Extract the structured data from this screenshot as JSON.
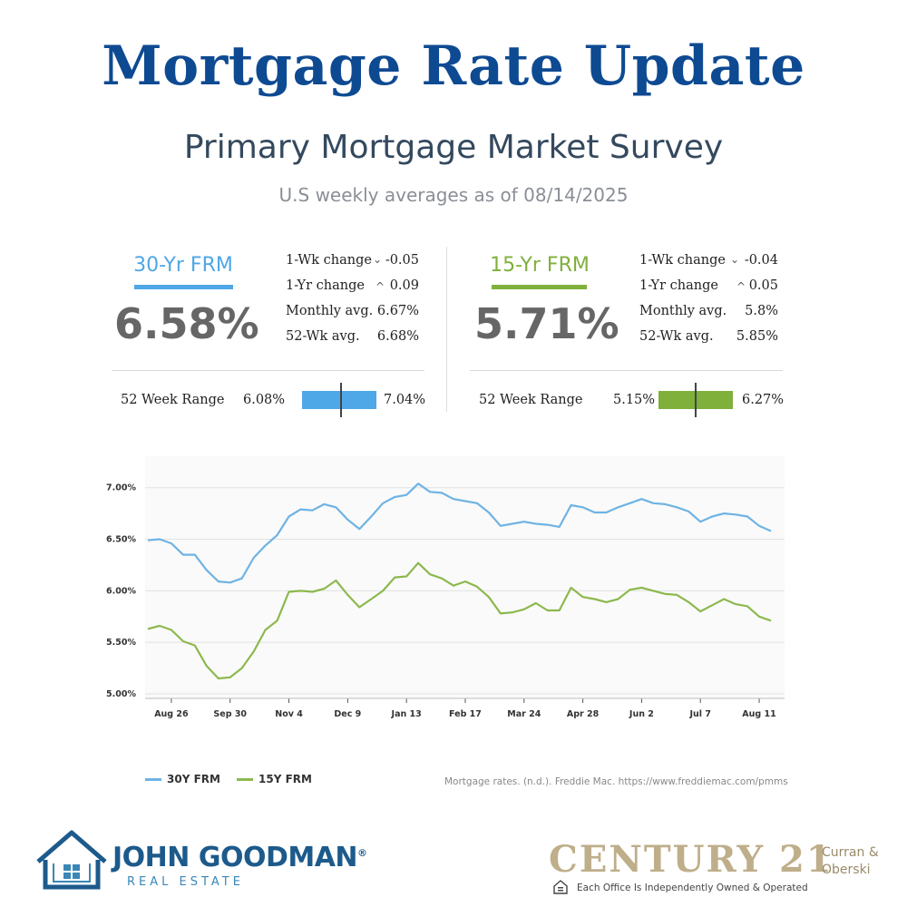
{
  "header": {
    "title": "Mortgage Rate Update",
    "subtitle": "Primary Mortgage Market Survey",
    "as_of": "U.S weekly averages as of 08/14/2025"
  },
  "panels": [
    {
      "label": "30-Yr FRM",
      "color": "#4ea7e6",
      "rate": "6.58%",
      "stats": [
        {
          "name": "1-Wk change",
          "arrow": "down",
          "value": "-0.05"
        },
        {
          "name": "1-Yr change",
          "arrow": "up",
          "value": "0.09"
        },
        {
          "name": "Monthly avg.",
          "arrow": "",
          "value": "6.67%"
        },
        {
          "name": "52-Wk avg.",
          "arrow": "",
          "value": "6.68%"
        }
      ],
      "range": {
        "label": "52 Week Range",
        "low": "6.08%",
        "high": "7.04%",
        "low_value": 6.08,
        "high_value": 7.04,
        "current_value": 6.58
      }
    },
    {
      "label": "15-Yr FRM",
      "color": "#7fb03c",
      "rate": "5.71%",
      "stats": [
        {
          "name": "1-Wk change",
          "arrow": "down",
          "value": "-0.04"
        },
        {
          "name": "1-Yr change",
          "arrow": "up",
          "value": "0.05"
        },
        {
          "name": "Monthly avg.",
          "arrow": "",
          "value": "5.8%"
        },
        {
          "name": "52-Wk avg.",
          "arrow": "",
          "value": "5.85%"
        }
      ],
      "range": {
        "label": "52 Week Range",
        "low": "5.15%",
        "high": "6.27%",
        "low_value": 5.15,
        "high_value": 6.27,
        "current_value": 5.71
      }
    }
  ],
  "chart_data": {
    "type": "line",
    "title": "",
    "xlabel": "",
    "ylabel": "",
    "ylim": [
      5.0,
      7.2
    ],
    "y_ticks": [
      "5.00%",
      "5.50%",
      "6.00%",
      "6.50%",
      "7.00%"
    ],
    "y_tick_values": [
      5.0,
      5.5,
      6.0,
      6.5,
      7.0
    ],
    "x_tick_labels": [
      "Aug 26",
      "Sep 30",
      "Nov 4",
      "Dec 9",
      "Jan 13",
      "Feb 17",
      "Mar 24",
      "Apr 28",
      "Jun 2",
      "Jul 7",
      "Aug 11"
    ],
    "x_tick_week_index": [
      2,
      7,
      12,
      17,
      22,
      27,
      32,
      37,
      42,
      47,
      52
    ],
    "grid": true,
    "legend": "bottom-left",
    "series": [
      {
        "name": "30Y FRM",
        "color": "#6fb3e4",
        "values": [
          6.49,
          6.5,
          6.46,
          6.35,
          6.35,
          6.2,
          6.09,
          6.08,
          6.12,
          6.32,
          6.44,
          6.54,
          6.72,
          6.79,
          6.78,
          6.84,
          6.81,
          6.69,
          6.6,
          6.72,
          6.85,
          6.91,
          6.93,
          7.04,
          6.96,
          6.95,
          6.89,
          6.87,
          6.85,
          6.76,
          6.63,
          6.65,
          6.67,
          6.65,
          6.64,
          6.62,
          6.83,
          6.81,
          6.76,
          6.76,
          6.81,
          6.85,
          6.89,
          6.85,
          6.84,
          6.81,
          6.77,
          6.67,
          6.72,
          6.75,
          6.74,
          6.72,
          6.63,
          6.58
        ]
      },
      {
        "name": "15Y FRM",
        "color": "#8db84e",
        "values": [
          5.63,
          5.66,
          5.62,
          5.51,
          5.47,
          5.27,
          5.15,
          5.16,
          5.25,
          5.41,
          5.62,
          5.71,
          5.99,
          6.0,
          5.99,
          6.02,
          6.1,
          5.96,
          5.84,
          5.92,
          6.0,
          6.13,
          6.14,
          6.27,
          6.16,
          6.12,
          6.05,
          6.09,
          6.04,
          5.94,
          5.78,
          5.79,
          5.82,
          5.88,
          5.81,
          5.81,
          6.03,
          5.94,
          5.92,
          5.89,
          5.92,
          6.01,
          6.03,
          6.0,
          5.97,
          5.96,
          5.89,
          5.8,
          5.86,
          5.92,
          5.87,
          5.85,
          5.75,
          5.71
        ]
      }
    ]
  },
  "source": "Mortgage rates. (n.d.). Freddie Mac. https://www.freddiemac.com/pmms",
  "footer": {
    "left_brand_name": "JOHN GOODMAN",
    "left_brand_reg": "®",
    "left_brand_sub": "REAL ESTATE",
    "left_logo_icon": "house-icon",
    "right_brand_name": "CENTURY 21",
    "right_brand_office_line": "Each Office Is Independently Owned & Operated",
    "right_brand_partner_1": "Curran &",
    "right_brand_partner_2": "Oberski",
    "equal_housing_icon": "equal-housing-icon"
  }
}
